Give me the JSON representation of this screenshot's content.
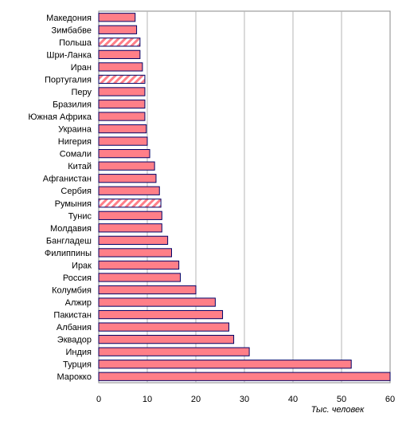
{
  "chart_data": {
    "type": "bar",
    "orientation": "horizontal",
    "categories": [
      "Македония",
      "Зимбабве",
      "Польша",
      "Шри-Ланка",
      "Иран",
      "Португалия",
      "Перу",
      "Бразилия",
      "Южная Африка",
      "Украина",
      "Нигерия",
      "Сомали",
      "Китай",
      "Афганистан",
      "Сербия",
      "Румыния",
      "Тунис",
      "Молдавия",
      "Бангладеш",
      "Филиппины",
      "Ирак",
      "Россия",
      "Колумбия",
      "Алжир",
      "Пакистан",
      "Албания",
      "Эквадор",
      "Индия",
      "Турция",
      "Марокко"
    ],
    "values": [
      7.5,
      7.8,
      8.5,
      8.5,
      9.0,
      9.5,
      9.5,
      9.5,
      9.5,
      9.8,
      10.0,
      10.5,
      11.5,
      11.8,
      12.5,
      12.8,
      13.0,
      13.0,
      14.2,
      15.0,
      16.5,
      16.8,
      20.0,
      24.0,
      25.5,
      26.8,
      27.8,
      31.0,
      52.0,
      60.0
    ],
    "hatched": [
      "Польша",
      "Португалия",
      "Румыния"
    ],
    "xticks": [
      "0",
      "10",
      "20",
      "30",
      "40",
      "50",
      "60"
    ],
    "xlim": [
      0,
      60
    ],
    "xlabel": "Тыс. человек",
    "grid": true,
    "colors": {
      "bar_fill": "#ff7f88",
      "bar_stroke": "#000066",
      "hatch": "#ff7f88",
      "grid": "#b4b4b4"
    }
  }
}
